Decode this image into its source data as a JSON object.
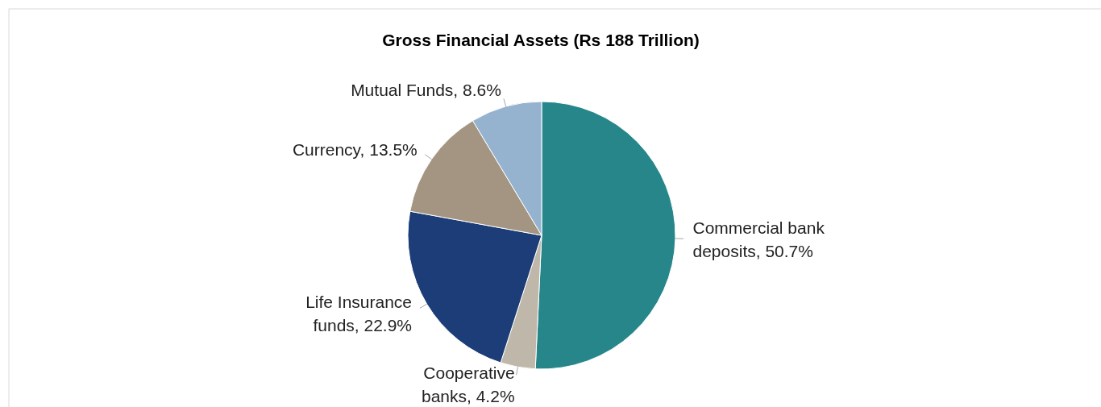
{
  "chart_data": {
    "type": "pie",
    "title": "Gross Financial Assets (Rs 188 Trillion)",
    "categories": [
      "Commercial bank deposits",
      "Cooperative banks",
      "Life Insurance funds",
      "Currency",
      "Mutual Funds"
    ],
    "values": [
      50.7,
      4.2,
      22.9,
      13.5,
      8.6
    ],
    "value_labels": [
      "50.7%",
      "4.2%",
      "22.9%",
      "13.5%",
      "8.6%"
    ],
    "colors": [
      "#27868a",
      "#bfb8aa",
      "#1c3d78",
      "#a39581",
      "#95b3cf"
    ],
    "legend": false
  }
}
